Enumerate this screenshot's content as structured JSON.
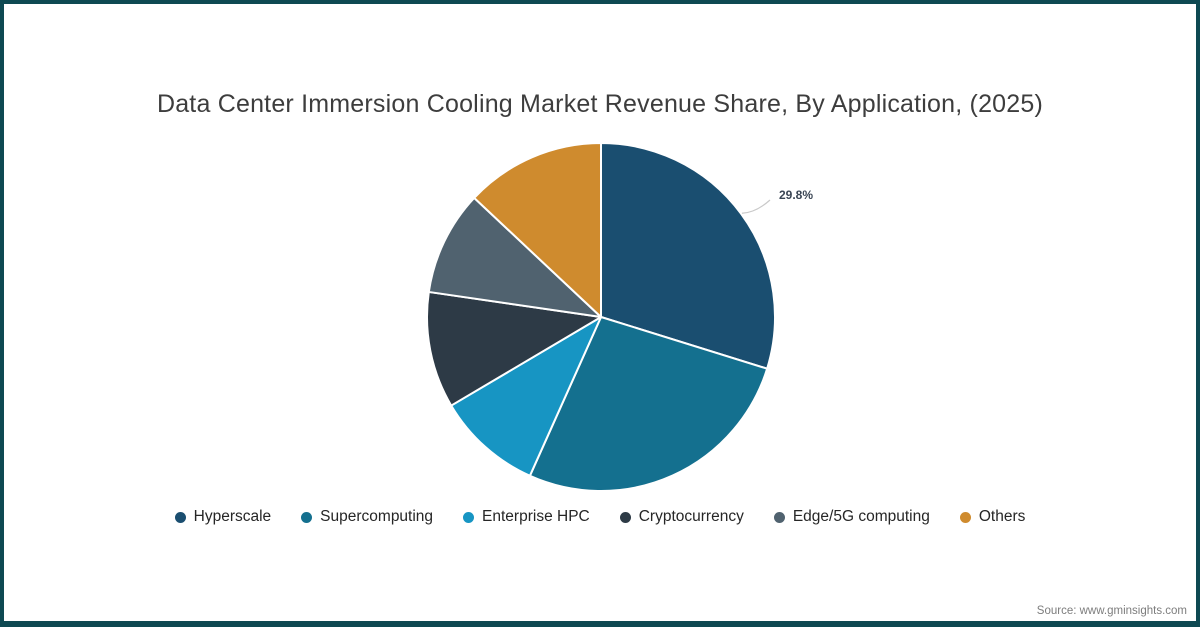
{
  "title": "Data Center Immersion Cooling Market Revenue Share, By Application, (2025)",
  "source": "Source: www.gminsights.com",
  "border_color": "#0e4952",
  "chart_data": {
    "type": "pie",
    "title": "Data Center Immersion Cooling Market Revenue Share, By Application, (2025)",
    "start_angle_deg": 0,
    "direction": "clockwise",
    "legend_position": "bottom",
    "slices": [
      {
        "label": "Hyperscale",
        "value": 29.8,
        "color": "#1a4e70"
      },
      {
        "label": "Supercomputing",
        "value": 26.9,
        "color": "#14708f"
      },
      {
        "label": "Enterprise HPC",
        "value": 9.8,
        "color": "#1795c3"
      },
      {
        "label": "Cryptocurrency",
        "value": 10.8,
        "color": "#2d3a46"
      },
      {
        "label": "Edge/5G computing",
        "value": 9.7,
        "color": "#50626f"
      },
      {
        "label": "Others",
        "value": 13.0,
        "color": "#cf8b2e"
      }
    ],
    "annotation": {
      "label": "29.8%",
      "slice": "Hyperscale"
    }
  }
}
